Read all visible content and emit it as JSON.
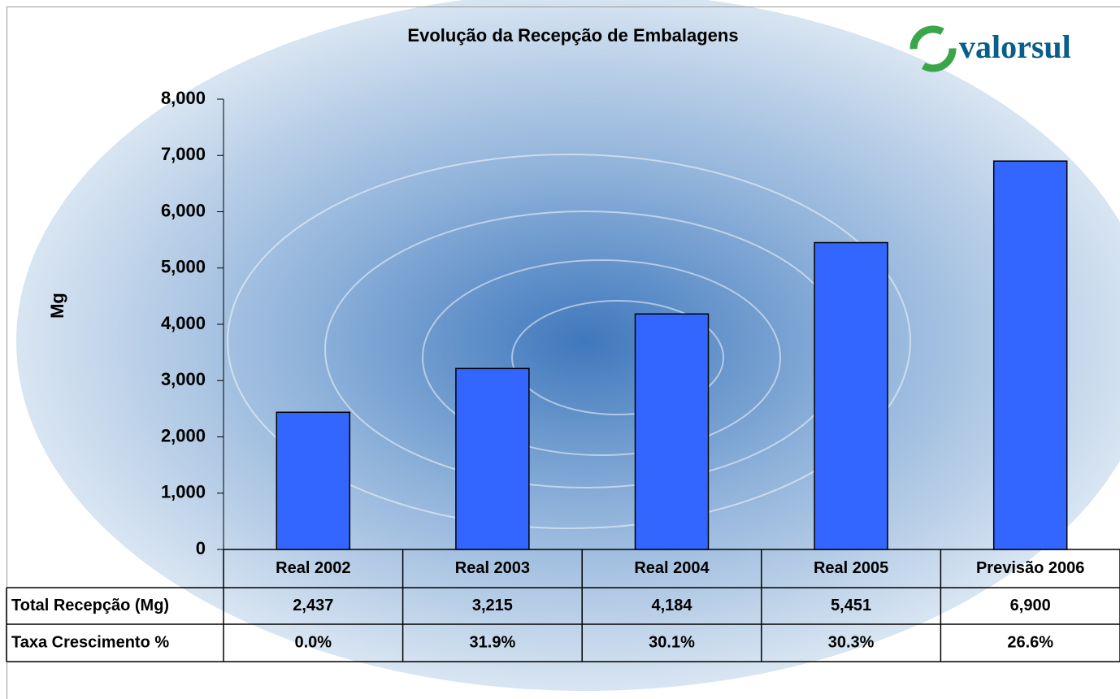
{
  "chart_data": {
    "type": "bar",
    "title": "Evolução da Recepção de Embalagens",
    "logo": "valorsul",
    "y_label": "Mg",
    "categories": [
      "Real 2002",
      "Real 2003",
      "Real 2004",
      "Real 2005",
      "Previsão 2006"
    ],
    "series": [
      {
        "name": "Total Recepção (Mg)",
        "color": "#3366ff",
        "values": [
          2437,
          3215,
          4184,
          5451,
          6900
        ],
        "value_labels": [
          "2,437",
          "3,215",
          "4,184",
          "5,451",
          "6,900"
        ]
      }
    ],
    "growth": {
      "name": "Taxa Crescimento %",
      "values": [
        0.0,
        31.9,
        30.1,
        30.3,
        26.6
      ],
      "value_labels": [
        "0.0%",
        "31.9%",
        "30.1%",
        "30.3%",
        "26.6%"
      ]
    },
    "ylim": [
      0,
      8000
    ],
    "yticks": [
      0,
      {
        "value": 1000,
        "label": "1,000"
      },
      {
        "value": 2000,
        "label": "2,000"
      },
      {
        "value": 3000,
        "label": "3,000"
      },
      {
        "value": 4000,
        "label": "4,000"
      },
      {
        "value": 5000,
        "label": "5,000"
      },
      {
        "value": 6000,
        "label": "6,000"
      },
      {
        "value": 7000,
        "label": "7,000"
      },
      {
        "value": 8000,
        "label": "8,000"
      }
    ]
  }
}
